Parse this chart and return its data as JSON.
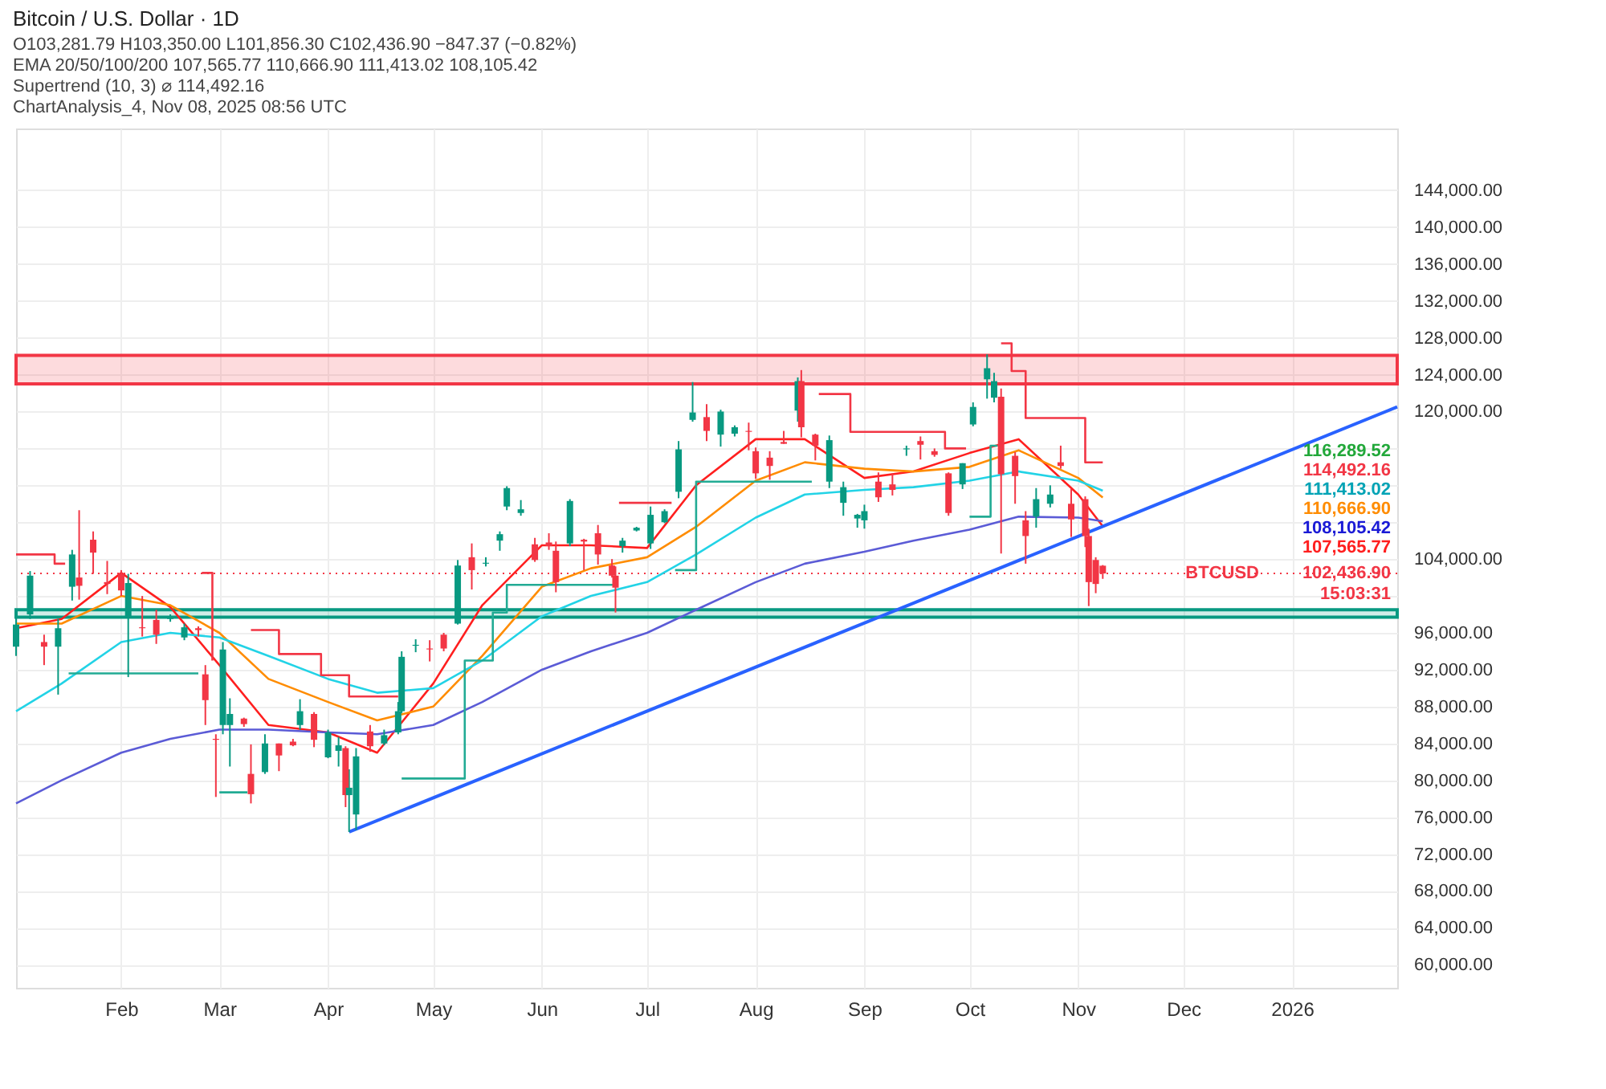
{
  "chart_data": {
    "type": "candlestick",
    "title": "Bitcoin / U.S. Dollar · 1D",
    "subtitle": "O103,281.79  H103,350.00  L101,856.30  C102,436.90  −847.37 (−0.82%)",
    "annotations": [
      "EMA 20/50/100/200  107,565.77  110,666.90  111,413.02  108,105.42",
      "Supertrend (10, 3)  ⌀  114,492.16",
      "ChartAnalysis_4, Nov 08, 2025 08:56 UTC",
      "116,289.52",
      "114,492.16",
      "111,413.02",
      "110,666.90",
      "108,105.42",
      "107,565.77",
      "102,436.90",
      "15:03:31"
    ],
    "x": [
      "2025-01-02",
      "2025-01-06",
      "2025-01-10",
      "2025-01-14",
      "2025-01-18",
      "2025-01-20",
      "2025-01-24",
      "2025-01-28",
      "2025-02-01",
      "2025-02-03",
      "2025-02-07",
      "2025-02-11",
      "2025-02-15",
      "2025-02-19",
      "2025-02-23",
      "2025-02-25",
      "2025-02-28",
      "2025-03-02",
      "2025-03-04",
      "2025-03-08",
      "2025-03-10",
      "2025-03-14",
      "2025-03-18",
      "2025-03-22",
      "2025-03-24",
      "2025-03-28",
      "2025-04-01",
      "2025-04-04",
      "2025-04-06",
      "2025-04-07",
      "2025-04-09",
      "2025-04-13",
      "2025-04-17",
      "2025-04-21",
      "2025-04-22",
      "2025-04-26",
      "2025-04-30",
      "2025-05-04",
      "2025-05-08",
      "2025-05-12",
      "2025-05-16",
      "2025-05-20",
      "2025-05-22",
      "2025-05-26",
      "2025-05-30",
      "2025-06-03",
      "2025-06-05",
      "2025-06-09",
      "2025-06-13",
      "2025-06-17",
      "2025-06-21",
      "2025-06-22",
      "2025-06-24",
      "2025-06-28",
      "2025-07-02",
      "2025-07-06",
      "2025-07-10",
      "2025-07-14",
      "2025-07-18",
      "2025-07-22",
      "2025-07-26",
      "2025-07-30",
      "2025-08-01",
      "2025-08-05",
      "2025-08-09",
      "2025-08-13",
      "2025-08-14",
      "2025-08-18",
      "2025-08-22",
      "2025-08-26",
      "2025-08-30",
      "2025-09-01",
      "2025-09-05",
      "2025-09-09",
      "2025-09-13",
      "2025-09-17",
      "2025-09-21",
      "2025-09-25",
      "2025-09-29",
      "2025-10-02",
      "2025-10-06",
      "2025-10-08",
      "2025-10-10",
      "2025-10-14",
      "2025-10-17",
      "2025-10-20",
      "2025-10-24",
      "2025-10-27",
      "2025-10-30",
      "2025-11-03",
      "2025-11-04",
      "2025-11-06",
      "2025-11-08"
    ],
    "ohlc": [
      [
        94500,
        98000,
        93500,
        96900
      ],
      [
        98000,
        102700,
        97500,
        102200
      ],
      [
        95000,
        95800,
        92500,
        94500
      ],
      [
        94500,
        97500,
        89300,
        96500
      ],
      [
        101000,
        105000,
        99500,
        104500
      ],
      [
        102000,
        109300,
        99600,
        101100
      ],
      [
        106100,
        107000,
        102400,
        104700
      ],
      [
        101500,
        103800,
        100200,
        101300
      ],
      [
        102400,
        102800,
        100000,
        100600
      ],
      [
        97700,
        102400,
        91200,
        101400
      ],
      [
        96600,
        100000,
        95600,
        96500
      ],
      [
        97400,
        98500,
        94800,
        95800
      ],
      [
        97500,
        98000,
        97200,
        97600
      ],
      [
        95500,
        97000,
        95200,
        96600
      ],
      [
        96500,
        96700,
        95600,
        96300
      ],
      [
        91500,
        92500,
        86000,
        88700
      ],
      [
        84500,
        85000,
        78200,
        84400
      ],
      [
        86000,
        95000,
        85000,
        94200
      ],
      [
        86000,
        88900,
        81500,
        87200
      ],
      [
        86700,
        86800,
        85800,
        86100
      ],
      [
        80700,
        83900,
        77500,
        78500
      ],
      [
        80900,
        85000,
        80700,
        84000
      ],
      [
        84000,
        84000,
        81000,
        82700
      ],
      [
        84200,
        84500,
        83700,
        83800
      ],
      [
        86000,
        88800,
        85500,
        87500
      ],
      [
        87200,
        87400,
        83600,
        84400
      ],
      [
        82500,
        85500,
        82400,
        85200
      ],
      [
        83200,
        84700,
        81500,
        83800
      ],
      [
        83500,
        83700,
        77100,
        78400
      ],
      [
        78400,
        81200,
        74400,
        79200
      ],
      [
        76300,
        83500,
        74600,
        82600
      ],
      [
        85300,
        86000,
        83100,
        83700
      ],
      [
        84000,
        85500,
        83800,
        84900
      ],
      [
        85200,
        88500,
        85000,
        87500
      ],
      [
        87500,
        94000,
        87300,
        93400
      ],
      [
        94600,
        95300,
        93900,
        94700
      ],
      [
        94300,
        95200,
        92900,
        94200
      ],
      [
        95800,
        96000,
        94000,
        94300
      ],
      [
        97000,
        103900,
        96900,
        103300
      ],
      [
        104200,
        105700,
        100700,
        102800
      ],
      [
        103500,
        104200,
        103200,
        103600
      ],
      [
        106000,
        107000,
        104900,
        106700
      ],
      [
        109700,
        111900,
        109300,
        111700
      ],
      [
        109000,
        110400,
        108700,
        109400
      ],
      [
        105600,
        106300,
        103700,
        103900
      ],
      [
        105800,
        106800,
        105000,
        105400
      ],
      [
        104900,
        105900,
        100400,
        101500
      ],
      [
        105700,
        110500,
        105400,
        110300
      ],
      [
        106100,
        106200,
        102800,
        105900
      ],
      [
        106800,
        107700,
        103400,
        104500
      ],
      [
        103300,
        104000,
        102000,
        102200
      ],
      [
        102200,
        103200,
        98200,
        100900
      ],
      [
        105400,
        106300,
        104700,
        106000
      ],
      [
        107100,
        107500,
        107000,
        107400
      ],
      [
        105700,
        109700,
        105100,
        108800
      ],
      [
        108000,
        109400,
        107900,
        109200
      ],
      [
        111300,
        116800,
        110600,
        115900
      ],
      [
        119100,
        123200,
        118900,
        119900
      ],
      [
        119400,
        120800,
        116800,
        117900
      ],
      [
        117500,
        120200,
        116200,
        120000
      ],
      [
        117600,
        118500,
        117300,
        118300
      ],
      [
        117900,
        118800,
        115800,
        117800
      ],
      [
        115700,
        116100,
        112700,
        113300
      ],
      [
        115000,
        115700,
        112600,
        114100
      ],
      [
        116700,
        117900,
        116500,
        116500
      ],
      [
        120100,
        123700,
        118900,
        123300
      ],
      [
        123300,
        124500,
        117200,
        118300
      ],
      [
        117500,
        117600,
        114700,
        116300
      ],
      [
        112400,
        117400,
        111700,
        116900
      ],
      [
        110100,
        112400,
        108700,
        111800
      ],
      [
        108400,
        108900,
        107400,
        108800
      ],
      [
        108200,
        109900,
        107300,
        109200
      ],
      [
        112400,
        113400,
        110200,
        110700
      ],
      [
        112100,
        113300,
        110900,
        111500
      ],
      [
        115900,
        116300,
        115200,
        116000
      ],
      [
        116800,
        117300,
        114800,
        116400
      ],
      [
        115700,
        116000,
        115100,
        115300
      ],
      [
        113300,
        113400,
        108700,
        109000
      ],
      [
        112100,
        114400,
        111600,
        114400
      ],
      [
        118600,
        121000,
        118400,
        120500
      ],
      [
        123500,
        126200,
        121400,
        124700
      ],
      [
        121500,
        124200,
        121000,
        123300
      ],
      [
        121600,
        122500,
        104600,
        113200
      ],
      [
        115200,
        115600,
        110000,
        113000
      ],
      [
        108200,
        109200,
        103500,
        106500
      ],
      [
        108600,
        111700,
        107400,
        110500
      ],
      [
        110000,
        112000,
        109600,
        111000
      ],
      [
        114500,
        116300,
        113800,
        114100
      ],
      [
        110000,
        111600,
        106400,
        108300
      ],
      [
        110500,
        110800,
        105300,
        106500
      ],
      [
        106500,
        107300,
        98900,
        101500
      ],
      [
        103900,
        104200,
        100300,
        101300
      ],
      [
        103281.79,
        103350.0,
        101856.3,
        102436.9
      ]
    ],
    "colors": [
      "#089981",
      "#089981",
      "#f23645",
      "#089981",
      "#089981",
      "#f23645",
      "#f23645",
      "#f23645",
      "#f23645",
      "#089981",
      "#f23645",
      "#f23645",
      "#089981",
      "#089981",
      "#f23645",
      "#f23645",
      "#f23645",
      "#089981",
      "#089981",
      "#f23645",
      "#f23645",
      "#089981",
      "#f23645",
      "#f23645",
      "#089981",
      "#f23645",
      "#089981",
      "#089981",
      "#f23645",
      "#089981",
      "#089981",
      "#f23645",
      "#089981",
      "#089981",
      "#089981",
      "#089981",
      "#f23645",
      "#f23645",
      "#089981",
      "#f23645",
      "#089981",
      "#089981",
      "#089981",
      "#089981",
      "#f23645",
      "#f23645",
      "#f23645",
      "#089981",
      "#f23645",
      "#f23645",
      "#f23645",
      "#f23645",
      "#089981",
      "#089981",
      "#089981",
      "#089981",
      "#089981",
      "#089981",
      "#f23645",
      "#089981",
      "#089981",
      "#f23645",
      "#f23645",
      "#f23645",
      "#f23645",
      "#089981",
      "#f23645",
      "#f23645",
      "#089981",
      "#089981",
      "#089981",
      "#089981",
      "#f23645",
      "#f23645",
      "#089981",
      "#f23645",
      "#f23645",
      "#f23645",
      "#089981",
      "#089981",
      "#089981",
      "#089981",
      "#f23645",
      "#f23645",
      "#f23645",
      "#089981",
      "#089981",
      "#f23645",
      "#f23645",
      "#f23645",
      "#f23645",
      "#f23645",
      "#f23645"
    ],
    "series": [
      {
        "type": "line",
        "color": "#ff1f1f",
        "x": [
          "2025-01-02",
          "2025-01-15",
          "2025-02-01",
          "2025-02-15",
          "2025-03-01",
          "2025-03-15",
          "2025-04-01",
          "2025-04-15",
          "2025-05-01",
          "2025-05-15",
          "2025-06-01",
          "2025-06-15",
          "2025-07-01",
          "2025-07-15",
          "2025-08-01",
          "2025-08-15",
          "2025-09-01",
          "2025-09-15",
          "2025-10-01",
          "2025-10-15",
          "2025-11-01",
          "2025-11-08"
        ],
        "values": [
          96500,
          97500,
          102500,
          98800,
          92500,
          86000,
          85200,
          83000,
          90500,
          99000,
          105500,
          105500,
          105200,
          112000,
          117000,
          117000,
          112800,
          113500,
          115500,
          117000,
          111000,
          107565.77
        ]
      },
      {
        "type": "line",
        "color": "#ff8c00",
        "x": [
          "2025-01-02",
          "2025-01-15",
          "2025-02-01",
          "2025-02-15",
          "2025-03-01",
          "2025-03-15",
          "2025-04-01",
          "2025-04-15",
          "2025-05-01",
          "2025-05-15",
          "2025-06-01",
          "2025-06-15",
          "2025-07-01",
          "2025-07-15",
          "2025-08-01",
          "2025-08-15",
          "2025-09-01",
          "2025-09-15",
          "2025-10-01",
          "2025-10-15",
          "2025-11-01",
          "2025-11-08"
        ],
        "values": [
          97000,
          97000,
          100000,
          99000,
          96000,
          91000,
          88500,
          86500,
          88000,
          93500,
          101000,
          103000,
          104200,
          107500,
          112500,
          114500,
          113800,
          113500,
          114000,
          115800,
          112800,
          110666.9
        ]
      },
      {
        "type": "line",
        "color": "#22d3e6",
        "x": [
          "2025-01-02",
          "2025-01-15",
          "2025-02-01",
          "2025-02-15",
          "2025-03-01",
          "2025-03-15",
          "2025-04-01",
          "2025-04-15",
          "2025-05-01",
          "2025-05-15",
          "2025-06-01",
          "2025-06-15",
          "2025-07-01",
          "2025-07-15",
          "2025-08-01",
          "2025-08-15",
          "2025-09-01",
          "2025-09-15",
          "2025-10-01",
          "2025-10-15",
          "2025-11-01",
          "2025-11-08"
        ],
        "values": [
          87500,
          90500,
          95000,
          96000,
          95500,
          93500,
          91000,
          89500,
          90000,
          93000,
          97800,
          100000,
          101500,
          104500,
          108500,
          111000,
          111500,
          111800,
          112500,
          113500,
          112500,
          111413.02
        ]
      },
      {
        "type": "line",
        "color": "#5b5bd6",
        "x": [
          "2025-01-02",
          "2025-01-15",
          "2025-02-01",
          "2025-02-15",
          "2025-03-01",
          "2025-03-15",
          "2025-04-01",
          "2025-04-15",
          "2025-05-01",
          "2025-05-15",
          "2025-06-01",
          "2025-06-15",
          "2025-07-01",
          "2025-07-15",
          "2025-08-01",
          "2025-08-15",
          "2025-09-01",
          "2025-09-15",
          "2025-10-01",
          "2025-10-15",
          "2025-11-01",
          "2025-11-08"
        ],
        "values": [
          77500,
          80000,
          83000,
          84500,
          85500,
          85500,
          85200,
          85000,
          86000,
          88500,
          92000,
          94000,
          96000,
          98500,
          101500,
          103500,
          104800,
          106000,
          107200,
          108600,
          108500,
          108105.42
        ]
      },
      {
        "type": "step",
        "color": "#f23645",
        "x": [
          "2025-01-02",
          "2025-01-13",
          "2025-01-16",
          "2025-01-17",
          "2025-02-24",
          "2025-02-27",
          "2025-03-01",
          "2025-03-10",
          "2025-03-18",
          "2025-03-30",
          "2025-04-07",
          "2025-04-21",
          "2025-04-22",
          "2025-06-23",
          "2025-07-08",
          "2025-07-09",
          "2025-08-19",
          "2025-08-28",
          "2025-09-24",
          "2025-09-30",
          "2025-10-01",
          "2025-10-10",
          "2025-10-13",
          "2025-10-17",
          "2025-11-03",
          "2025-11-08"
        ],
        "values": [
          104500,
          103500,
          103500,
          null,
          102500,
          93000,
          null,
          96300,
          93700,
          91400,
          89100,
          89100,
          null,
          110100,
          110100,
          null,
          121900,
          117800,
          116000,
          116000,
          null,
          127400,
          124400,
          119300,
          114492.16,
          114492.16
        ]
      },
      {
        "type": "step",
        "color": "#22ab94",
        "x": [
          "2025-01-17",
          "2025-02-23",
          "2025-02-24",
          "2025-03-01",
          "2025-03-09",
          "2025-03-10",
          "2025-04-22",
          "2025-05-10",
          "2025-05-18",
          "2025-05-22",
          "2025-06-22",
          "2025-06-23",
          "2025-07-09",
          "2025-07-15",
          "2025-08-17",
          "2025-08-18",
          "2025-10-01",
          "2025-10-07",
          "2025-10-09"
        ],
        "values": [
          91600,
          91600,
          null,
          78700,
          78700,
          null,
          80200,
          93000,
          98200,
          101200,
          101200,
          null,
          102800,
          112400,
          112400,
          null,
          108600,
          116300,
          116300
        ]
      },
      {
        "type": "line",
        "color": "#2962ff",
        "x": [
          "2025-04-07",
          "2026-01-31"
        ],
        "values": [
          74400,
          120500
        ]
      }
    ],
    "bands": [
      {
        "axis": "y",
        "from": 123000,
        "to": 126100,
        "label": null,
        "color": "#f23645"
      },
      {
        "axis": "y",
        "from": 97700,
        "to": 98500,
        "label": null,
        "color": "#089981"
      }
    ],
    "ref_lines": [
      {
        "axis": "y",
        "value": 102436.9,
        "label": "BTCUSD",
        "color": "#f23645",
        "line_style": "dotted"
      }
    ],
    "xlim": [
      "2025-01-02",
      "2026-01-31"
    ],
    "xticks": [
      {
        "value": "2025-02-01",
        "label": "Feb"
      },
      {
        "value": "2025-03-01",
        "label": "Mar"
      },
      {
        "value": "2025-04-01",
        "label": "Apr"
      },
      {
        "value": "2025-05-01",
        "label": "May"
      },
      {
        "value": "2025-06-01",
        "label": "Jun"
      },
      {
        "value": "2025-07-01",
        "label": "Jul"
      },
      {
        "value": "2025-08-01",
        "label": "Aug"
      },
      {
        "value": "2025-09-01",
        "label": "Sep"
      },
      {
        "value": "2025-10-01",
        "label": "Oct"
      },
      {
        "value": "2025-11-01",
        "label": "Nov"
      },
      {
        "value": "2025-12-01",
        "label": "Dec"
      },
      {
        "value": "2026-01-01",
        "label": "2026"
      }
    ],
    "ylim": [
      57500,
      150700
    ],
    "yticks": [
      {
        "value": 60000,
        "label": "60,000.00"
      },
      {
        "value": 64000,
        "label": "64,000.00"
      },
      {
        "value": 68000,
        "label": "68,000.00"
      },
      {
        "value": 72000,
        "label": "72,000.00"
      },
      {
        "value": 76000,
        "label": "76,000.00"
      },
      {
        "value": 80000,
        "label": "80,000.00"
      },
      {
        "value": 84000,
        "label": "84,000.00"
      },
      {
        "value": 88000,
        "label": "88,000.00"
      },
      {
        "value": 92000,
        "label": "92,000.00"
      },
      {
        "value": 96000,
        "label": "96,000.00"
      },
      {
        "value": 100000,
        "label": null
      },
      {
        "value": 104000,
        "label": "104,000.00"
      },
      {
        "value": 108000,
        "label": null
      },
      {
        "value": 112000,
        "label": null
      },
      {
        "value": 116000,
        "label": null
      },
      {
        "value": 120000,
        "label": "120,000.00"
      },
      {
        "value": 124000,
        "label": "124,000.00"
      },
      {
        "value": 128000,
        "label": "128,000.00"
      },
      {
        "value": 132000,
        "label": "132,000.00"
      },
      {
        "value": 136000,
        "label": "136,000.00"
      },
      {
        "value": 140000,
        "label": "140,000.00"
      },
      {
        "value": 144000,
        "label": "144,000.00"
      }
    ],
    "grid": true
  }
}
